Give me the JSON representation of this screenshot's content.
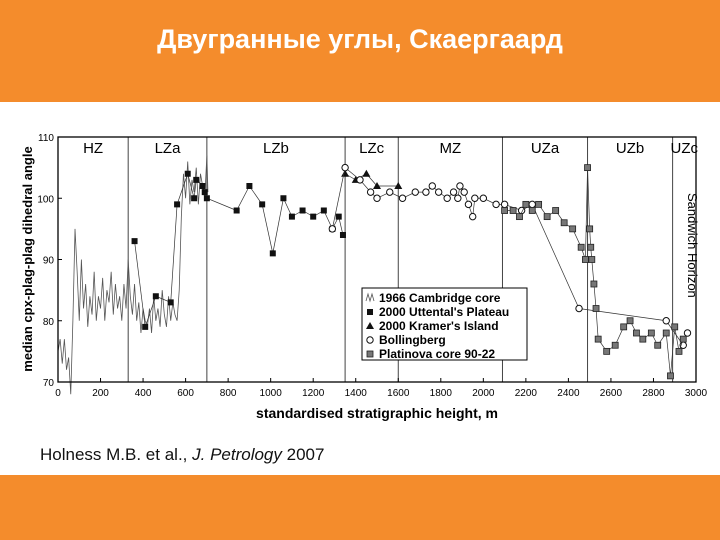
{
  "slide": {
    "title": "Двугранные углы, Скаергаард",
    "citation_prefix": "Holness M.B. et al., ",
    "citation_journal": "J. Petrology",
    "citation_year": " 2007",
    "colors": {
      "band": "#f48c2c",
      "title_text": "#ffffff"
    }
  },
  "chart_data": {
    "type": "scatter",
    "xlabel": "standardised stratigraphic height, m",
    "ylabel": "median cpx-plag-plag dihedral angle",
    "xlim": [
      0,
      3000
    ],
    "ylim": [
      70,
      110
    ],
    "xticks": [
      0,
      200,
      400,
      600,
      800,
      1000,
      1200,
      1400,
      1600,
      1800,
      2000,
      2200,
      2400,
      2600,
      2800,
      3000
    ],
    "yticks": [
      70,
      80,
      90,
      100,
      110
    ],
    "zones": [
      {
        "label": "HZ",
        "start": 0,
        "end": 330
      },
      {
        "label": "LZa",
        "start": 330,
        "end": 700
      },
      {
        "label": "LZb",
        "start": 700,
        "end": 1350
      },
      {
        "label": "LZc",
        "start": 1350,
        "end": 1600
      },
      {
        "label": "MZ",
        "start": 1600,
        "end": 2090
      },
      {
        "label": "UZa",
        "start": 2090,
        "end": 2490
      },
      {
        "label": "UZb",
        "start": 2490,
        "end": 2890
      },
      {
        "label": "UZc",
        "start": 2890,
        "end": 3000
      }
    ],
    "side_label": "Sandwich Horizon",
    "sandwich_horizon_x": 2990,
    "legend_position": "lower-center",
    "series": [
      {
        "name": "1966 Cambridge core",
        "marker": "line",
        "points": [
          [
            0,
            75
          ],
          [
            10,
            77
          ],
          [
            20,
            73
          ],
          [
            30,
            77
          ],
          [
            40,
            72
          ],
          [
            50,
            74
          ],
          [
            60,
            68
          ],
          [
            70,
            80
          ],
          [
            80,
            95
          ],
          [
            90,
            88
          ],
          [
            100,
            80
          ],
          [
            110,
            90
          ],
          [
            120,
            82
          ],
          [
            130,
            86
          ],
          [
            140,
            79
          ],
          [
            150,
            84
          ],
          [
            160,
            81
          ],
          [
            170,
            88
          ],
          [
            180,
            80
          ],
          [
            190,
            84
          ],
          [
            200,
            82
          ],
          [
            210,
            87
          ],
          [
            220,
            80
          ],
          [
            230,
            85
          ],
          [
            240,
            83
          ],
          [
            250,
            88
          ],
          [
            260,
            81
          ],
          [
            270,
            86
          ],
          [
            280,
            82
          ],
          [
            290,
            84
          ],
          [
            300,
            80
          ],
          [
            310,
            86
          ],
          [
            320,
            82
          ],
          [
            330,
            90
          ],
          [
            340,
            84
          ],
          [
            350,
            81
          ],
          [
            360,
            86
          ],
          [
            370,
            80
          ],
          [
            380,
            83
          ],
          [
            390,
            78
          ],
          [
            400,
            82
          ],
          [
            410,
            80
          ],
          [
            420,
            79
          ],
          [
            430,
            82
          ],
          [
            440,
            78
          ],
          [
            450,
            84
          ],
          [
            460,
            80
          ],
          [
            470,
            82
          ],
          [
            480,
            79
          ],
          [
            490,
            85
          ],
          [
            500,
            81
          ],
          [
            510,
            79
          ],
          [
            520,
            84
          ],
          [
            530,
            80
          ],
          [
            540,
            83
          ],
          [
            550,
            81
          ],
          [
            560,
            80
          ],
          [
            570,
            85
          ],
          [
            580,
            97
          ],
          [
            590,
            104
          ],
          [
            600,
            100
          ],
          [
            610,
            106
          ],
          [
            620,
            99
          ],
          [
            630,
            103
          ],
          [
            640,
            101
          ],
          [
            650,
            105
          ],
          [
            660,
            99
          ],
          [
            670,
            104
          ],
          [
            680,
            102
          ],
          [
            690,
            100
          ],
          [
            700,
            107
          ],
          [
            705,
            101
          ]
        ]
      },
      {
        "name": "2000 Uttental's Plateau",
        "marker": "square-filled",
        "points": [
          [
            360,
            93
          ],
          [
            410,
            79
          ],
          [
            460,
            84
          ],
          [
            530,
            83
          ],
          [
            560,
            99
          ],
          [
            610,
            104
          ],
          [
            640,
            100
          ],
          [
            650,
            103
          ],
          [
            680,
            102
          ],
          [
            690,
            101
          ],
          [
            700,
            100
          ],
          [
            840,
            98
          ],
          [
            900,
            102
          ],
          [
            960,
            99
          ],
          [
            1010,
            91
          ],
          [
            1060,
            100
          ],
          [
            1100,
            97
          ],
          [
            1150,
            98
          ],
          [
            1200,
            97
          ],
          [
            1250,
            98
          ],
          [
            1290,
            95
          ],
          [
            1320,
            97
          ],
          [
            1340,
            94
          ]
        ]
      },
      {
        "name": "2000 Kramer's Island",
        "marker": "triangle-filled",
        "points": [
          [
            1350,
            104
          ],
          [
            1400,
            103
          ],
          [
            1450,
            104
          ],
          [
            1500,
            102
          ],
          [
            1600,
            102
          ]
        ]
      },
      {
        "name": "Bollingberg",
        "marker": "circle-open",
        "points": [
          [
            1290,
            95
          ],
          [
            1350,
            105
          ],
          [
            1420,
            103
          ],
          [
            1470,
            101
          ],
          [
            1500,
            100
          ],
          [
            1560,
            101
          ],
          [
            1620,
            100
          ],
          [
            1680,
            101
          ],
          [
            1730,
            101
          ],
          [
            1760,
            102
          ],
          [
            1790,
            101
          ],
          [
            1830,
            100
          ],
          [
            1860,
            101
          ],
          [
            1880,
            100
          ],
          [
            1890,
            102
          ],
          [
            1910,
            101
          ],
          [
            1930,
            99
          ],
          [
            1950,
            97
          ],
          [
            1960,
            100
          ],
          [
            2000,
            100
          ],
          [
            2060,
            99
          ],
          [
            2100,
            99
          ],
          [
            2180,
            98
          ],
          [
            2230,
            99
          ],
          [
            2450,
            82
          ],
          [
            2860,
            80
          ],
          [
            2940,
            76
          ],
          [
            2960,
            78
          ]
        ]
      },
      {
        "name": "Platinova core 90-22",
        "marker": "square-gray",
        "points": [
          [
            2100,
            98
          ],
          [
            2140,
            98
          ],
          [
            2170,
            97
          ],
          [
            2200,
            99
          ],
          [
            2230,
            98
          ],
          [
            2260,
            99
          ],
          [
            2300,
            97
          ],
          [
            2340,
            98
          ],
          [
            2380,
            96
          ],
          [
            2420,
            95
          ],
          [
            2460,
            92
          ],
          [
            2480,
            90
          ],
          [
            2490,
            105
          ],
          [
            2500,
            95
          ],
          [
            2505,
            92
          ],
          [
            2510,
            90
          ],
          [
            2520,
            86
          ],
          [
            2530,
            82
          ],
          [
            2540,
            77
          ],
          [
            2580,
            75
          ],
          [
            2620,
            76
          ],
          [
            2660,
            79
          ],
          [
            2690,
            80
          ],
          [
            2720,
            78
          ],
          [
            2750,
            77
          ],
          [
            2790,
            78
          ],
          [
            2820,
            76
          ],
          [
            2860,
            78
          ],
          [
            2880,
            71
          ],
          [
            2900,
            79
          ],
          [
            2920,
            75
          ],
          [
            2940,
            77
          ]
        ]
      }
    ]
  }
}
